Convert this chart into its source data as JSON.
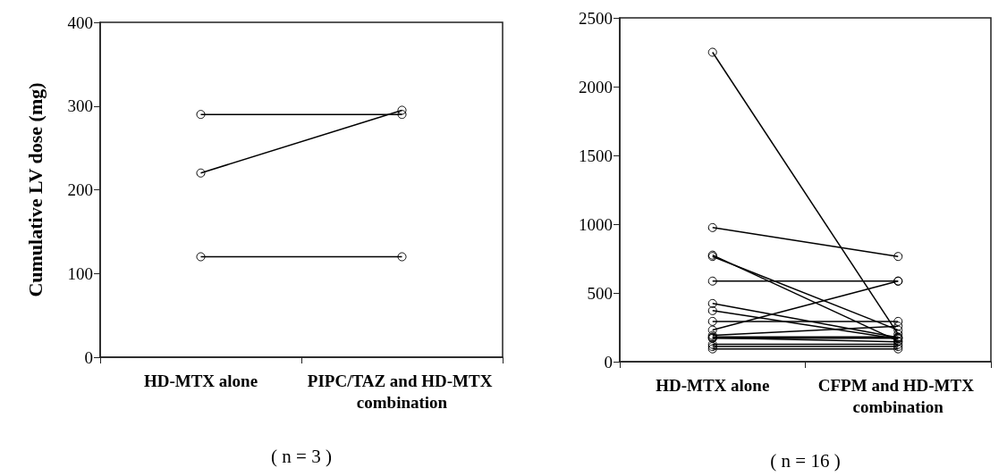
{
  "chart_data": [
    {
      "type": "line",
      "ylabel": "Cumulative LV dose (mg)",
      "xlabel": "( n = 3 )",
      "categories": [
        "HD-MTX alone",
        "PIPC/TAZ and HD-MTX combination"
      ],
      "ylim": [
        0,
        400
      ],
      "yticks": [
        0,
        100,
        200,
        300,
        400
      ],
      "marker": "circle",
      "line_style": "solid",
      "grid": false,
      "series": [
        {
          "color": "#000000",
          "values": [
            290,
            290
          ]
        },
        {
          "color": "#000000",
          "values": [
            220,
            295
          ]
        },
        {
          "color": "#000000",
          "values": [
            120,
            120
          ]
        }
      ]
    },
    {
      "type": "line",
      "xlabel": "( n = 16 )",
      "categories": [
        "HD-MTX alone",
        "CFPM and HD-MTX combination"
      ],
      "ylim": [
        0,
        2500
      ],
      "yticks": [
        0,
        500,
        1000,
        1500,
        2000,
        2500
      ],
      "marker": "circle",
      "line_style": "solid",
      "grid": false,
      "series": [
        {
          "color": "#000000",
          "values": [
            2250,
            200
          ]
        },
        {
          "color": "#000000",
          "values": [
            975,
            765
          ]
        },
        {
          "color": "#000000",
          "values": [
            775,
            150
          ]
        },
        {
          "color": "#000000",
          "values": [
            765,
            230
          ]
        },
        {
          "color": "#000000",
          "values": [
            586,
            586
          ]
        },
        {
          "color": "#000000",
          "values": [
            230,
            586
          ]
        },
        {
          "color": "#000000",
          "values": [
            423,
            175
          ]
        },
        {
          "color": "#000000",
          "values": [
            371,
            165
          ]
        },
        {
          "color": "#000000",
          "values": [
            293,
            293
          ]
        },
        {
          "color": "#000000",
          "values": [
            191,
            258
          ]
        },
        {
          "color": "#000000",
          "values": [
            180,
            180
          ]
        },
        {
          "color": "#000000",
          "values": [
            174,
            145
          ]
        },
        {
          "color": "#000000",
          "values": [
            170,
            170
          ]
        },
        {
          "color": "#000000",
          "values": [
            126,
            126
          ]
        },
        {
          "color": "#000000",
          "values": [
            110,
            110
          ]
        },
        {
          "color": "#000000",
          "values": [
            93,
            93
          ]
        }
      ]
    }
  ]
}
